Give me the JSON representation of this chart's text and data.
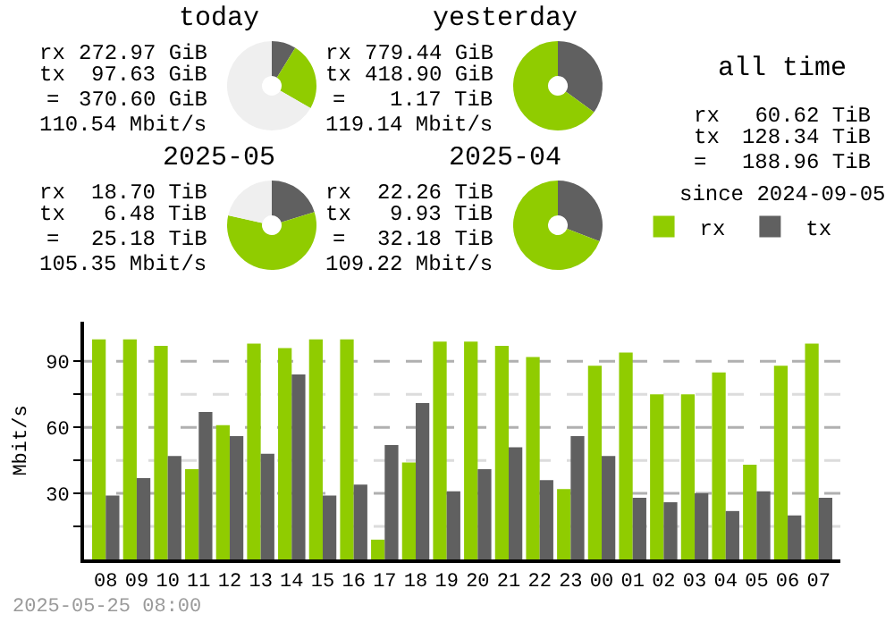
{
  "chart_data": [
    {
      "type": "donut",
      "title": "today",
      "categories": [
        null,
        null,
        null
      ],
      "values": [
        8.8,
        24.5,
        66.7
      ],
      "colors": [
        "#606060",
        "#90cc00",
        "#efefef"
      ],
      "annotations": [
        "rx",
        "272.97 GiB",
        "tx",
        "97.63 GiB",
        "=",
        "370.60 GiB",
        "110.54 Mbit/s"
      ]
    },
    {
      "type": "donut",
      "title": "yesterday",
      "categories": [
        null,
        null
      ],
      "values": [
        35.0,
        65.0
      ],
      "colors": [
        "#606060",
        "#90cc00"
      ],
      "annotations": [
        "rx",
        "779.44 GiB",
        "tx",
        "418.90 GiB",
        "=",
        "1.17 TiB",
        "119.14 Mbit/s"
      ]
    },
    {
      "type": "other",
      "title": "all time",
      "annotations": [
        "rx",
        "60.62 TiB",
        "tx",
        "128.34 TiB",
        "=",
        "188.96 TiB",
        "since 2024-09-05"
      ]
    },
    {
      "type": "donut",
      "title": "2025-05",
      "categories": [
        null,
        null,
        null
      ],
      "values": [
        20.2,
        58.3,
        21.5
      ],
      "colors": [
        "#606060",
        "#90cc00",
        "#efefef"
      ],
      "annotations": [
        "rx",
        "18.70 TiB",
        "tx",
        "6.48 TiB",
        "=",
        "25.18 TiB",
        "105.35 Mbit/s"
      ]
    },
    {
      "type": "donut",
      "title": "2025-04",
      "categories": [
        null,
        null
      ],
      "values": [
        30.9,
        69.1
      ],
      "colors": [
        "#606060",
        "#90cc00"
      ],
      "annotations": [
        "rx",
        "22.26 TiB",
        "tx",
        "9.93 TiB",
        "=",
        "32.18 TiB",
        "109.22 Mbit/s"
      ]
    },
    {
      "type": "bar",
      "ylabel": "Mbit/s",
      "categories": [
        "08",
        "09",
        "10",
        "11",
        "12",
        "13",
        "14",
        "15",
        "16",
        "17",
        "18",
        "19",
        "20",
        "21",
        "22",
        "23",
        "00",
        "01",
        "02",
        "03",
        "04",
        "05",
        "06",
        "07"
      ],
      "series": [
        {
          "name": "rx",
          "color": "#90cc00",
          "values": [
            100,
            100,
            97,
            41,
            61,
            98,
            96,
            100,
            100,
            9,
            44,
            99,
            99,
            97,
            92,
            32,
            88,
            94,
            75,
            75,
            85,
            43,
            88,
            98
          ]
        },
        {
          "name": "tx",
          "color": "#606060",
          "values": [
            29,
            37,
            47,
            67,
            56,
            48,
            84,
            29,
            34,
            52,
            71,
            31,
            41,
            51,
            36,
            56,
            47,
            28,
            26,
            30,
            22,
            31,
            20,
            28
          ]
        }
      ],
      "ylim": [
        0,
        108
      ],
      "yticks": [
        {
          "value": 15,
          "label": null
        },
        30,
        {
          "value": 45,
          "label": null
        },
        60,
        {
          "value": 75,
          "label": null
        },
        90
      ],
      "grid": "y",
      "line_style": "dashed",
      "legend": "top right",
      "annotations": [
        "2025-05-25 08:00"
      ]
    }
  ]
}
